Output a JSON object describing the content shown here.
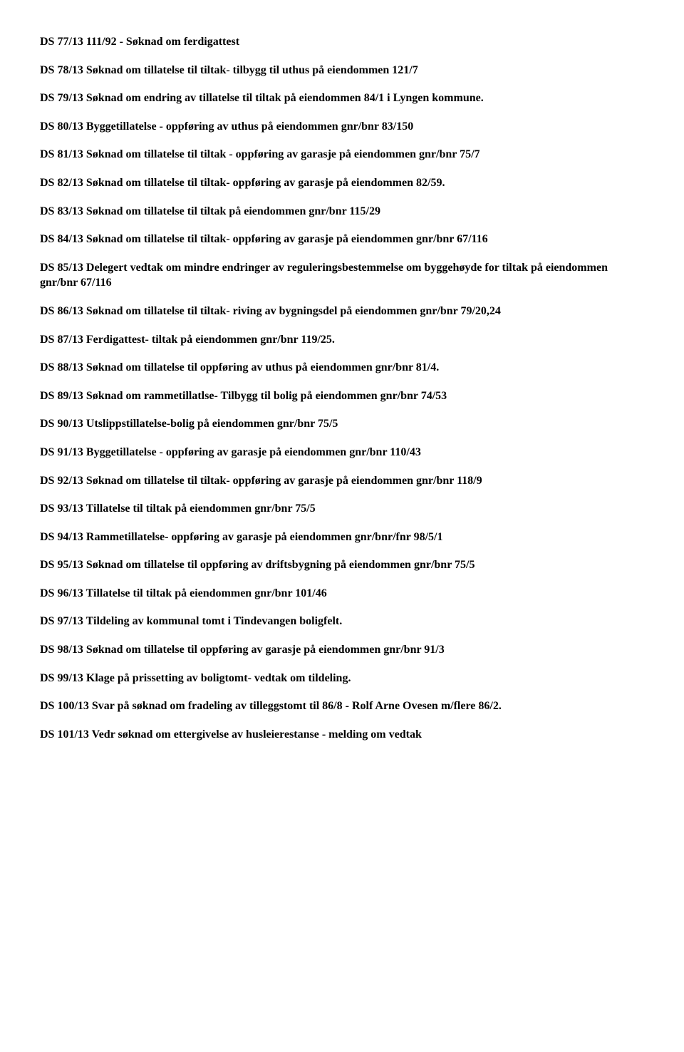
{
  "document": {
    "font_family": "Times New Roman",
    "font_size_pt": 12,
    "font_weight": "bold",
    "text_color": "#000000",
    "background_color": "#ffffff",
    "entries": [
      "DS 77/13 111/92 - Søknad om ferdigattest",
      "DS 78/13 Søknad om tillatelse til tiltak- tilbygg til uthus på eiendommen 121/7",
      "DS 79/13 Søknad om endring av tillatelse til tiltak på eiendommen 84/1 i Lyngen kommune.",
      "DS 80/13 Byggetillatelse - oppføring av uthus på eiendommen gnr/bnr 83/150",
      "DS 81/13 Søknad om tillatelse til tiltak - oppføring av garasje på eiendommen gnr/bnr 75/7",
      "DS 82/13 Søknad om tillatelse til tiltak- oppføring av garasje på eiendommen 82/59.",
      "DS 83/13 Søknad om tillatelse til tiltak på eiendommen gnr/bnr 115/29",
      "DS 84/13 Søknad om tillatelse til tiltak- oppføring av garasje på eiendommen gnr/bnr 67/116",
      "DS 85/13 Delegert vedtak om mindre endringer av reguleringsbestemmelse om byggehøyde for tiltak på eiendommen gnr/bnr 67/116",
      "DS 86/13 Søknad om tillatelse til tiltak- riving av bygningsdel på eiendommen gnr/bnr 79/20,24",
      "DS 87/13 Ferdigattest- tiltak på eiendommen gnr/bnr 119/25.",
      "DS 88/13 Søknad om tillatelse til oppføring av uthus på eiendommen gnr/bnr 81/4.",
      "DS 89/13 Søknad om rammetillatlse- Tilbygg til bolig på eiendommen gnr/bnr 74/53",
      "DS 90/13 Utslippstillatelse-bolig på eiendommen gnr/bnr 75/5",
      "DS 91/13 Byggetillatelse - oppføring av garasje på eiendommen gnr/bnr 110/43",
      "DS 92/13 Søknad om tillatelse til tiltak- oppføring av garasje på eiendommen gnr/bnr 118/9",
      "DS 93/13 Tillatelse til tiltak på eiendommen gnr/bnr 75/5",
      "DS 94/13 Rammetillatelse- oppføring av garasje på eiendommen gnr/bnr/fnr 98/5/1",
      "DS 95/13 Søknad om tillatelse til oppføring av driftsbygning på eiendommen gnr/bnr 75/5",
      "DS 96/13 Tillatelse til tiltak på eiendommen gnr/bnr 101/46",
      "DS 97/13 Tildeling av kommunal tomt i Tindevangen boligfelt.",
      "DS 98/13 Søknad om tillatelse til oppføring av garasje på eiendommen gnr/bnr 91/3",
      "DS 99/13 Klage på prissetting av boligtomt- vedtak om tildeling.",
      "DS 100/13 Svar på søknad om fradeling av tilleggstomt til 86/8 - Rolf Arne Ovesen m/flere 86/2.",
      "DS 101/13 Vedr søknad om ettergivelse av husleierestanse - melding om vedtak"
    ]
  }
}
